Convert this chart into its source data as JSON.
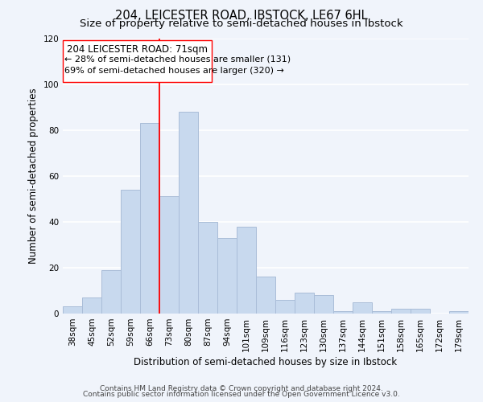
{
  "title": "204, LEICESTER ROAD, IBSTOCK, LE67 6HL",
  "subtitle": "Size of property relative to semi-detached houses in Ibstock",
  "xlabel": "Distribution of semi-detached houses by size in Ibstock",
  "ylabel": "Number of semi-detached properties",
  "bar_color": "#c8d9ee",
  "bar_edge_color": "#aabdd8",
  "background_color": "#f0f4fb",
  "grid_color": "#ffffff",
  "categories": [
    "38sqm",
    "45sqm",
    "52sqm",
    "59sqm",
    "66sqm",
    "73sqm",
    "80sqm",
    "87sqm",
    "94sqm",
    "101sqm",
    "109sqm",
    "116sqm",
    "123sqm",
    "130sqm",
    "137sqm",
    "144sqm",
    "151sqm",
    "158sqm",
    "165sqm",
    "172sqm",
    "179sqm"
  ],
  "values": [
    3,
    7,
    19,
    54,
    83,
    51,
    88,
    40,
    33,
    38,
    16,
    6,
    9,
    8,
    1,
    5,
    1,
    2,
    2,
    0,
    1
  ],
  "ylim": [
    0,
    120
  ],
  "yticks": [
    0,
    20,
    40,
    60,
    80,
    100,
    120
  ],
  "vline_x_index": 5,
  "annotation_title": "204 LEICESTER ROAD: 71sqm",
  "annotation_smaller": "← 28% of semi-detached houses are smaller (131)",
  "annotation_larger": "69% of semi-detached houses are larger (320) →",
  "footer1": "Contains HM Land Registry data © Crown copyright and database right 2024.",
  "footer2": "Contains public sector information licensed under the Open Government Licence v3.0.",
  "title_fontsize": 10.5,
  "subtitle_fontsize": 9.5,
  "axis_label_fontsize": 8.5,
  "tick_fontsize": 7.5,
  "annotation_fontsize": 8.5,
  "footer_fontsize": 6.5
}
